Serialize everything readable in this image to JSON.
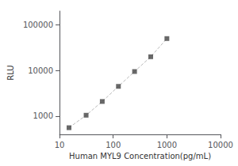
{
  "chart_data": {
    "type": "line",
    "xlabel": "Human MYL9 Concentration(pg/mL)",
    "ylabel": "RLU",
    "x": [
      15,
      31.25,
      62.5,
      125,
      250,
      500,
      1000
    ],
    "series": [
      {
        "type": "line",
        "line_style": "dashed",
        "color": "#bbbbbb",
        "values": [
          560,
          1050,
          2100,
          4500,
          9500,
          20000,
          50000
        ]
      },
      {
        "type": "scatter",
        "marker": "square",
        "color": "#444444",
        "values": [
          560,
          1050,
          2100,
          4500,
          9500,
          20000,
          50000
        ]
      }
    ],
    "xlim": [
      10,
      10000
    ],
    "ylim": [
      400,
      200000
    ],
    "xticks": [
      10,
      100,
      1000,
      10000
    ],
    "yticks": [
      1000,
      10000,
      100000
    ],
    "log": true,
    "grid": false
  }
}
